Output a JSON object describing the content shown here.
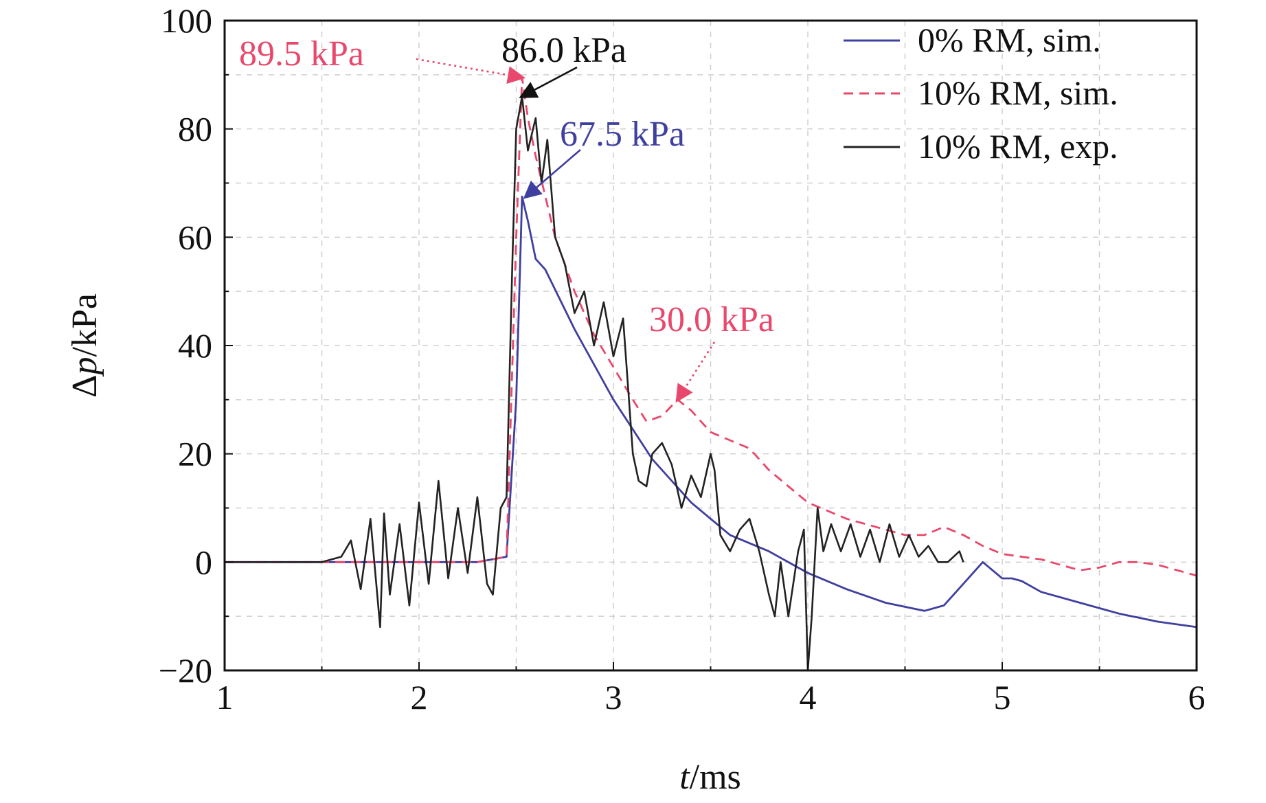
{
  "chart_data": {
    "type": "line",
    "xlabel_var": "t",
    "xlabel_unit": "/ms",
    "ylabel_var": "p",
    "ylabel_prefix": "Δ",
    "ylabel_unit": "/kPa",
    "xlim": [
      1,
      6
    ],
    "ylim": [
      -20,
      100
    ],
    "xticks": [
      1,
      2,
      3,
      4,
      5,
      6
    ],
    "yticks": [
      -20,
      0,
      20,
      40,
      60,
      80,
      100
    ],
    "ytick_labels": [
      "−20",
      "0",
      "20",
      "40",
      "60",
      "80",
      "100"
    ],
    "grid": true,
    "legend_position": "top-right",
    "series": [
      {
        "name": "0% RM, sim.",
        "color": "#3f3f9f",
        "dash": "solid",
        "x": [
          1.0,
          2.3,
          2.45,
          2.5,
          2.53,
          2.56,
          2.6,
          2.65,
          2.8,
          3.0,
          3.2,
          3.4,
          3.6,
          3.8,
          4.0,
          4.2,
          4.4,
          4.6,
          4.7,
          4.8,
          4.9,
          4.95,
          5.0,
          5.05,
          5.1,
          5.2,
          5.4,
          5.6,
          5.8,
          6.0
        ],
        "y": [
          0,
          0,
          1,
          30,
          67.5,
          63,
          56,
          54,
          43,
          30,
          19,
          11,
          5,
          2,
          -2,
          -5,
          -7.5,
          -9,
          -8,
          -4,
          0,
          -1.5,
          -3,
          -3,
          -3.5,
          -5.5,
          -7.5,
          -9.5,
          -11,
          -12
        ]
      },
      {
        "name": "10% RM, sim.",
        "color": "#e8486b",
        "dash": "dashed",
        "x": [
          1.0,
          2.3,
          2.45,
          2.5,
          2.53,
          2.56,
          2.6,
          2.7,
          2.8,
          2.9,
          3.0,
          3.1,
          3.17,
          3.25,
          3.33,
          3.4,
          3.5,
          3.6,
          3.7,
          3.8,
          3.9,
          4.0,
          4.2,
          4.4,
          4.5,
          4.6,
          4.7,
          4.8,
          4.9,
          5.0,
          5.2,
          5.4,
          5.5,
          5.6,
          5.7,
          5.8,
          6.0
        ],
        "y": [
          0,
          0,
          1,
          60,
          89.5,
          82,
          75,
          60,
          50,
          42,
          36,
          30,
          26,
          27,
          30,
          28,
          24,
          22.5,
          21,
          17,
          14,
          11,
          8,
          6,
          5,
          5,
          6.5,
          5,
          3,
          1.5,
          0.5,
          -1.5,
          -1,
          0,
          0,
          -0.5,
          -2.5
        ]
      },
      {
        "name": "10% RM, exp.",
        "color": "#222222",
        "dash": "solid",
        "x": [
          1.0,
          1.5,
          1.6,
          1.65,
          1.7,
          1.75,
          1.8,
          1.82,
          1.85,
          1.9,
          1.95,
          2.0,
          2.05,
          2.1,
          2.15,
          2.2,
          2.25,
          2.3,
          2.35,
          2.38,
          2.42,
          2.45,
          2.48,
          2.5,
          2.53,
          2.56,
          2.6,
          2.63,
          2.66,
          2.7,
          2.75,
          2.8,
          2.85,
          2.9,
          2.95,
          3.0,
          3.05,
          3.1,
          3.13,
          3.17,
          3.2,
          3.25,
          3.3,
          3.35,
          3.4,
          3.45,
          3.5,
          3.52,
          3.55,
          3.6,
          3.65,
          3.7,
          3.75,
          3.8,
          3.83,
          3.86,
          3.9,
          3.95,
          3.98,
          4.0,
          4.02,
          4.05,
          4.08,
          4.12,
          4.17,
          4.22,
          4.27,
          4.32,
          4.37,
          4.42,
          4.47,
          4.52,
          4.57,
          4.62,
          4.67,
          4.72,
          4.78,
          4.8
        ],
        "y": [
          0,
          0,
          1,
          4,
          -5,
          8,
          -12,
          9,
          -6,
          7,
          -8,
          11,
          -4,
          15,
          -3,
          10,
          -2,
          12,
          -4,
          -6,
          10,
          12,
          55,
          80,
          86,
          76,
          82,
          70,
          78,
          60,
          55,
          46,
          50,
          40,
          48,
          38,
          45,
          20,
          15,
          14,
          20,
          22,
          18,
          10,
          16,
          12,
          20,
          17,
          5,
          2,
          6,
          8,
          2,
          -6,
          -10,
          0,
          -10,
          2,
          6,
          -20,
          -10,
          10,
          2,
          7,
          2,
          7,
          1,
          6,
          0,
          7,
          1,
          5,
          1,
          3,
          0,
          0,
          2,
          0
        ]
      }
    ],
    "annotations": [
      {
        "text": "89.5 kPa",
        "color": "#e8486b",
        "point": [
          2.53,
          89.5
        ]
      },
      {
        "text": "86.0 kPa",
        "color": "#111111",
        "point": [
          2.53,
          86.0
        ]
      },
      {
        "text": "67.5 kPa",
        "color": "#3f3f9f",
        "point": [
          2.55,
          67.5
        ]
      },
      {
        "text": "30.0 kPa",
        "color": "#e8486b",
        "point": [
          3.33,
          30.0
        ]
      }
    ]
  }
}
